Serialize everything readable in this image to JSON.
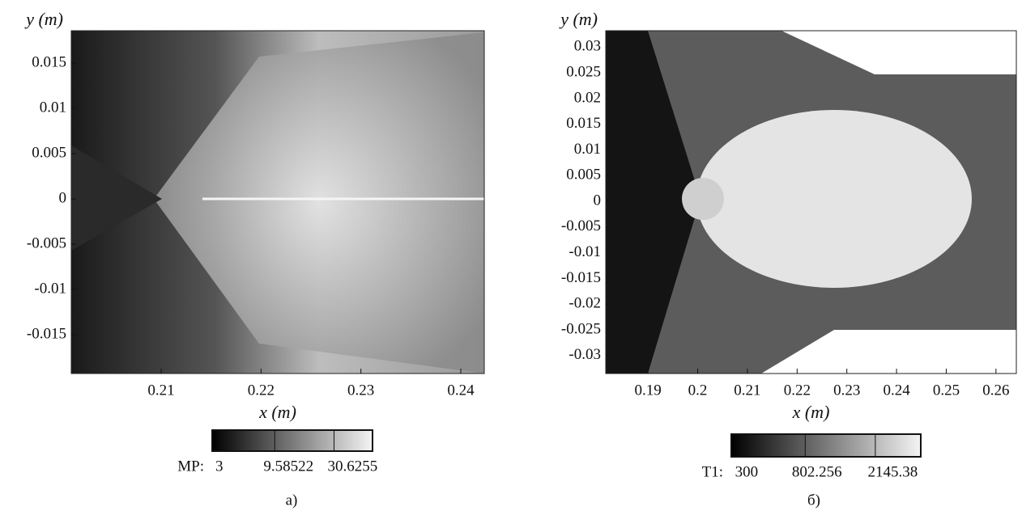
{
  "chart_data": [
    {
      "type": "field",
      "xlabel": "x (m)",
      "ylabel": "y (m)",
      "xlim": [
        0.201,
        0.24235
      ],
      "ylim": [
        -0.0193,
        0.0186
      ],
      "xticks": [
        0.21,
        0.22,
        0.23,
        0.24
      ],
      "yticks": [
        0.015,
        0.01,
        0.005,
        0,
        -0.005,
        -0.01,
        -0.015
      ],
      "colorbar": {
        "label": "MP:",
        "levels": [
          3,
          9.58522,
          30.6255
        ]
      },
      "caption": "а)"
    },
    {
      "type": "field",
      "xlabel": "x (m)",
      "ylabel": "y (m)",
      "xlim": [
        0.1815,
        0.2641
      ],
      "ylim": [
        -0.0335,
        0.0332
      ],
      "xticks": [
        0.19,
        0.2,
        0.21,
        0.22,
        0.23,
        0.24,
        0.25,
        0.26
      ],
      "yticks": [
        0.03,
        0.025,
        0.02,
        0.015,
        0.01,
        0.005,
        0,
        -0.005,
        -0.01,
        -0.015,
        -0.02,
        -0.025,
        -0.03
      ],
      "colorbar": {
        "label": "T1:",
        "levels": [
          300,
          802.256,
          2145.38
        ]
      },
      "caption": "б)"
    }
  ]
}
